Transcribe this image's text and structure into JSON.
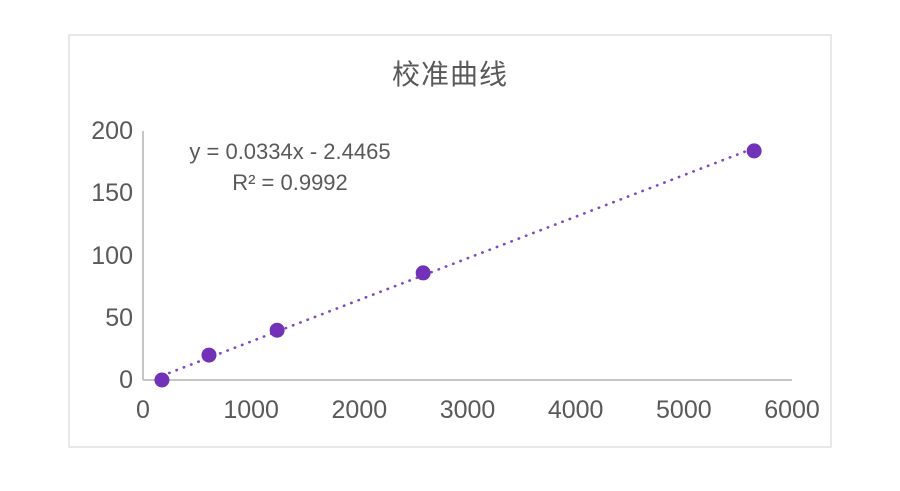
{
  "chart": {
    "title": "校准曲线",
    "equation_label": "y = 0.0334x - 2.4465",
    "r_squared_label": "R² = 0.9992",
    "colors": {
      "marker": "#7132b8",
      "trendline": "#7f49c5",
      "axis_line": "#c6c6c6",
      "text": "#595959",
      "frame_border": "#e8e8e8",
      "background": "#ffffff"
    }
  },
  "chart_data": {
    "type": "scatter",
    "title": "校准曲线",
    "x": [
      175,
      610,
      1240,
      2590,
      5650
    ],
    "y": [
      0,
      20,
      40,
      86,
      184
    ],
    "xlabel": "",
    "ylabel": "",
    "xlim": [
      0,
      6000
    ],
    "ylim": [
      0,
      200
    ],
    "x_ticks": [
      0,
      1000,
      2000,
      3000,
      4000,
      5000,
      6000
    ],
    "y_ticks": [
      0,
      50,
      100,
      150,
      200
    ],
    "grid": false,
    "legend": "none",
    "marker_style": "filled-circle",
    "trendline": {
      "type": "linear",
      "slope": 0.0334,
      "intercept": -2.4465,
      "r2": 0.9992,
      "style": "dotted",
      "equation_text": "y = 0.0334x - 2.4465",
      "r2_text": "R² = 0.9992"
    },
    "annotations": [
      "y = 0.0334x - 2.4465",
      "R² = 0.9992"
    ]
  }
}
